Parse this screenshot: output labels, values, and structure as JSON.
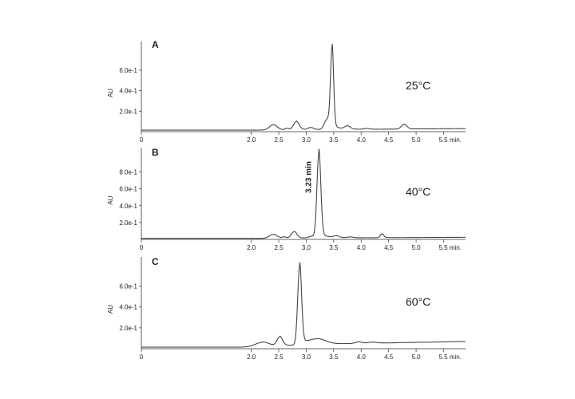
{
  "chart_data": [
    {
      "type": "line",
      "panel_label": "A",
      "annotation_text": "25°C",
      "ylabel": "AU",
      "y_ticks": [
        0.2,
        0.4,
        0.6
      ],
      "y_tick_labels": [
        "2.0e-1",
        "4.0e-1",
        "6.0e-1"
      ],
      "ylim": [
        0,
        0.88
      ],
      "x_ticks": [
        0,
        2.0,
        2.5,
        3.0,
        3.5,
        4.0,
        4.5,
        5.0,
        5.5
      ],
      "x_tick_labels": [
        "0",
        "2.0",
        "2.5",
        "3.0",
        "3.5",
        "4.0",
        "4.5",
        "5.0",
        "5.5 min."
      ],
      "xlim": [
        0,
        5.9
      ],
      "peaks": [
        {
          "x": 2.4,
          "y": 0.05,
          "w": 0.07
        },
        {
          "x": 2.65,
          "y": 0.015,
          "w": 0.03
        },
        {
          "x": 2.82,
          "y": 0.08,
          "w": 0.05
        },
        {
          "x": 3.08,
          "y": 0.02,
          "w": 0.05
        },
        {
          "x": 3.38,
          "y": 0.1,
          "w": 0.05
        },
        {
          "x": 3.47,
          "y": 0.78,
          "w": 0.028
        },
        {
          "x": 3.75,
          "y": 0.03,
          "w": 0.05
        },
        {
          "x": 4.1,
          "y": 0.008,
          "w": 0.05
        },
        {
          "x": 4.78,
          "y": 0.045,
          "w": 0.05
        }
      ],
      "baseline": [
        [
          0,
          0.015
        ],
        [
          2.0,
          0.015
        ],
        [
          5.9,
          0.03
        ]
      ]
    },
    {
      "type": "line",
      "panel_label": "B",
      "annotation_text": "40°C",
      "ylabel": "AU",
      "y_ticks": [
        0.2,
        0.4,
        0.6,
        0.8
      ],
      "y_tick_labels": [
        "2.0e-1",
        "4.0e-1",
        "6.0e-1",
        "8.0e-1"
      ],
      "ylim": [
        0,
        1.08
      ],
      "x_ticks": [
        0,
        2.0,
        2.5,
        3.0,
        3.5,
        4.0,
        4.5,
        5.0,
        5.5
      ],
      "x_tick_labels": [
        "0",
        "2.0",
        "2.5",
        "3.0",
        "3.5",
        "4.0",
        "4.5",
        "5.0",
        "5.5 min."
      ],
      "xlim": [
        0,
        5.9
      ],
      "peak_label": {
        "text": "3.23 min",
        "x": 3.23
      },
      "peaks": [
        {
          "x": 2.4,
          "y": 0.045,
          "w": 0.07
        },
        {
          "x": 2.6,
          "y": 0.015,
          "w": 0.03
        },
        {
          "x": 2.78,
          "y": 0.075,
          "w": 0.05
        },
        {
          "x": 3.1,
          "y": 0.02,
          "w": 0.05
        },
        {
          "x": 3.23,
          "y": 1.0,
          "w": 0.035
        },
        {
          "x": 3.55,
          "y": 0.02,
          "w": 0.05
        },
        {
          "x": 3.8,
          "y": 0.01,
          "w": 0.05
        },
        {
          "x": 4.38,
          "y": 0.045,
          "w": 0.03
        }
      ],
      "baseline": [
        [
          0,
          0.012
        ],
        [
          2.0,
          0.012
        ],
        [
          5.9,
          0.025
        ]
      ]
    },
    {
      "type": "line",
      "panel_label": "C",
      "annotation_text": "60°C",
      "ylabel": "AU",
      "y_ticks": [
        0.2,
        0.4,
        0.6
      ],
      "y_tick_labels": [
        "2.0e-1",
        "4.0e-1",
        "6.0e-1"
      ],
      "ylim": [
        0,
        0.88
      ],
      "x_ticks": [
        0,
        2.0,
        2.5,
        3.0,
        3.5,
        4.0,
        4.5,
        5.0,
        5.5
      ],
      "x_tick_labels": [
        "0",
        "2.0",
        "2.5",
        "3.0",
        "3.5",
        "4.0",
        "4.5",
        "5.0",
        "5.5 min."
      ],
      "xlim": [
        0,
        5.9
      ],
      "peaks": [
        {
          "x": 2.2,
          "y": 0.04,
          "w": 0.12
        },
        {
          "x": 2.52,
          "y": 0.085,
          "w": 0.05
        },
        {
          "x": 2.88,
          "y": 0.75,
          "w": 0.035
        },
        {
          "x": 3.2,
          "y": 0.05,
          "w": 0.15
        },
        {
          "x": 3.95,
          "y": 0.015,
          "w": 0.06
        },
        {
          "x": 4.2,
          "y": 0.01,
          "w": 0.08
        }
      ],
      "baseline": [
        [
          0,
          0.015
        ],
        [
          1.8,
          0.015
        ],
        [
          3.5,
          0.045
        ],
        [
          5.9,
          0.07
        ]
      ]
    }
  ]
}
